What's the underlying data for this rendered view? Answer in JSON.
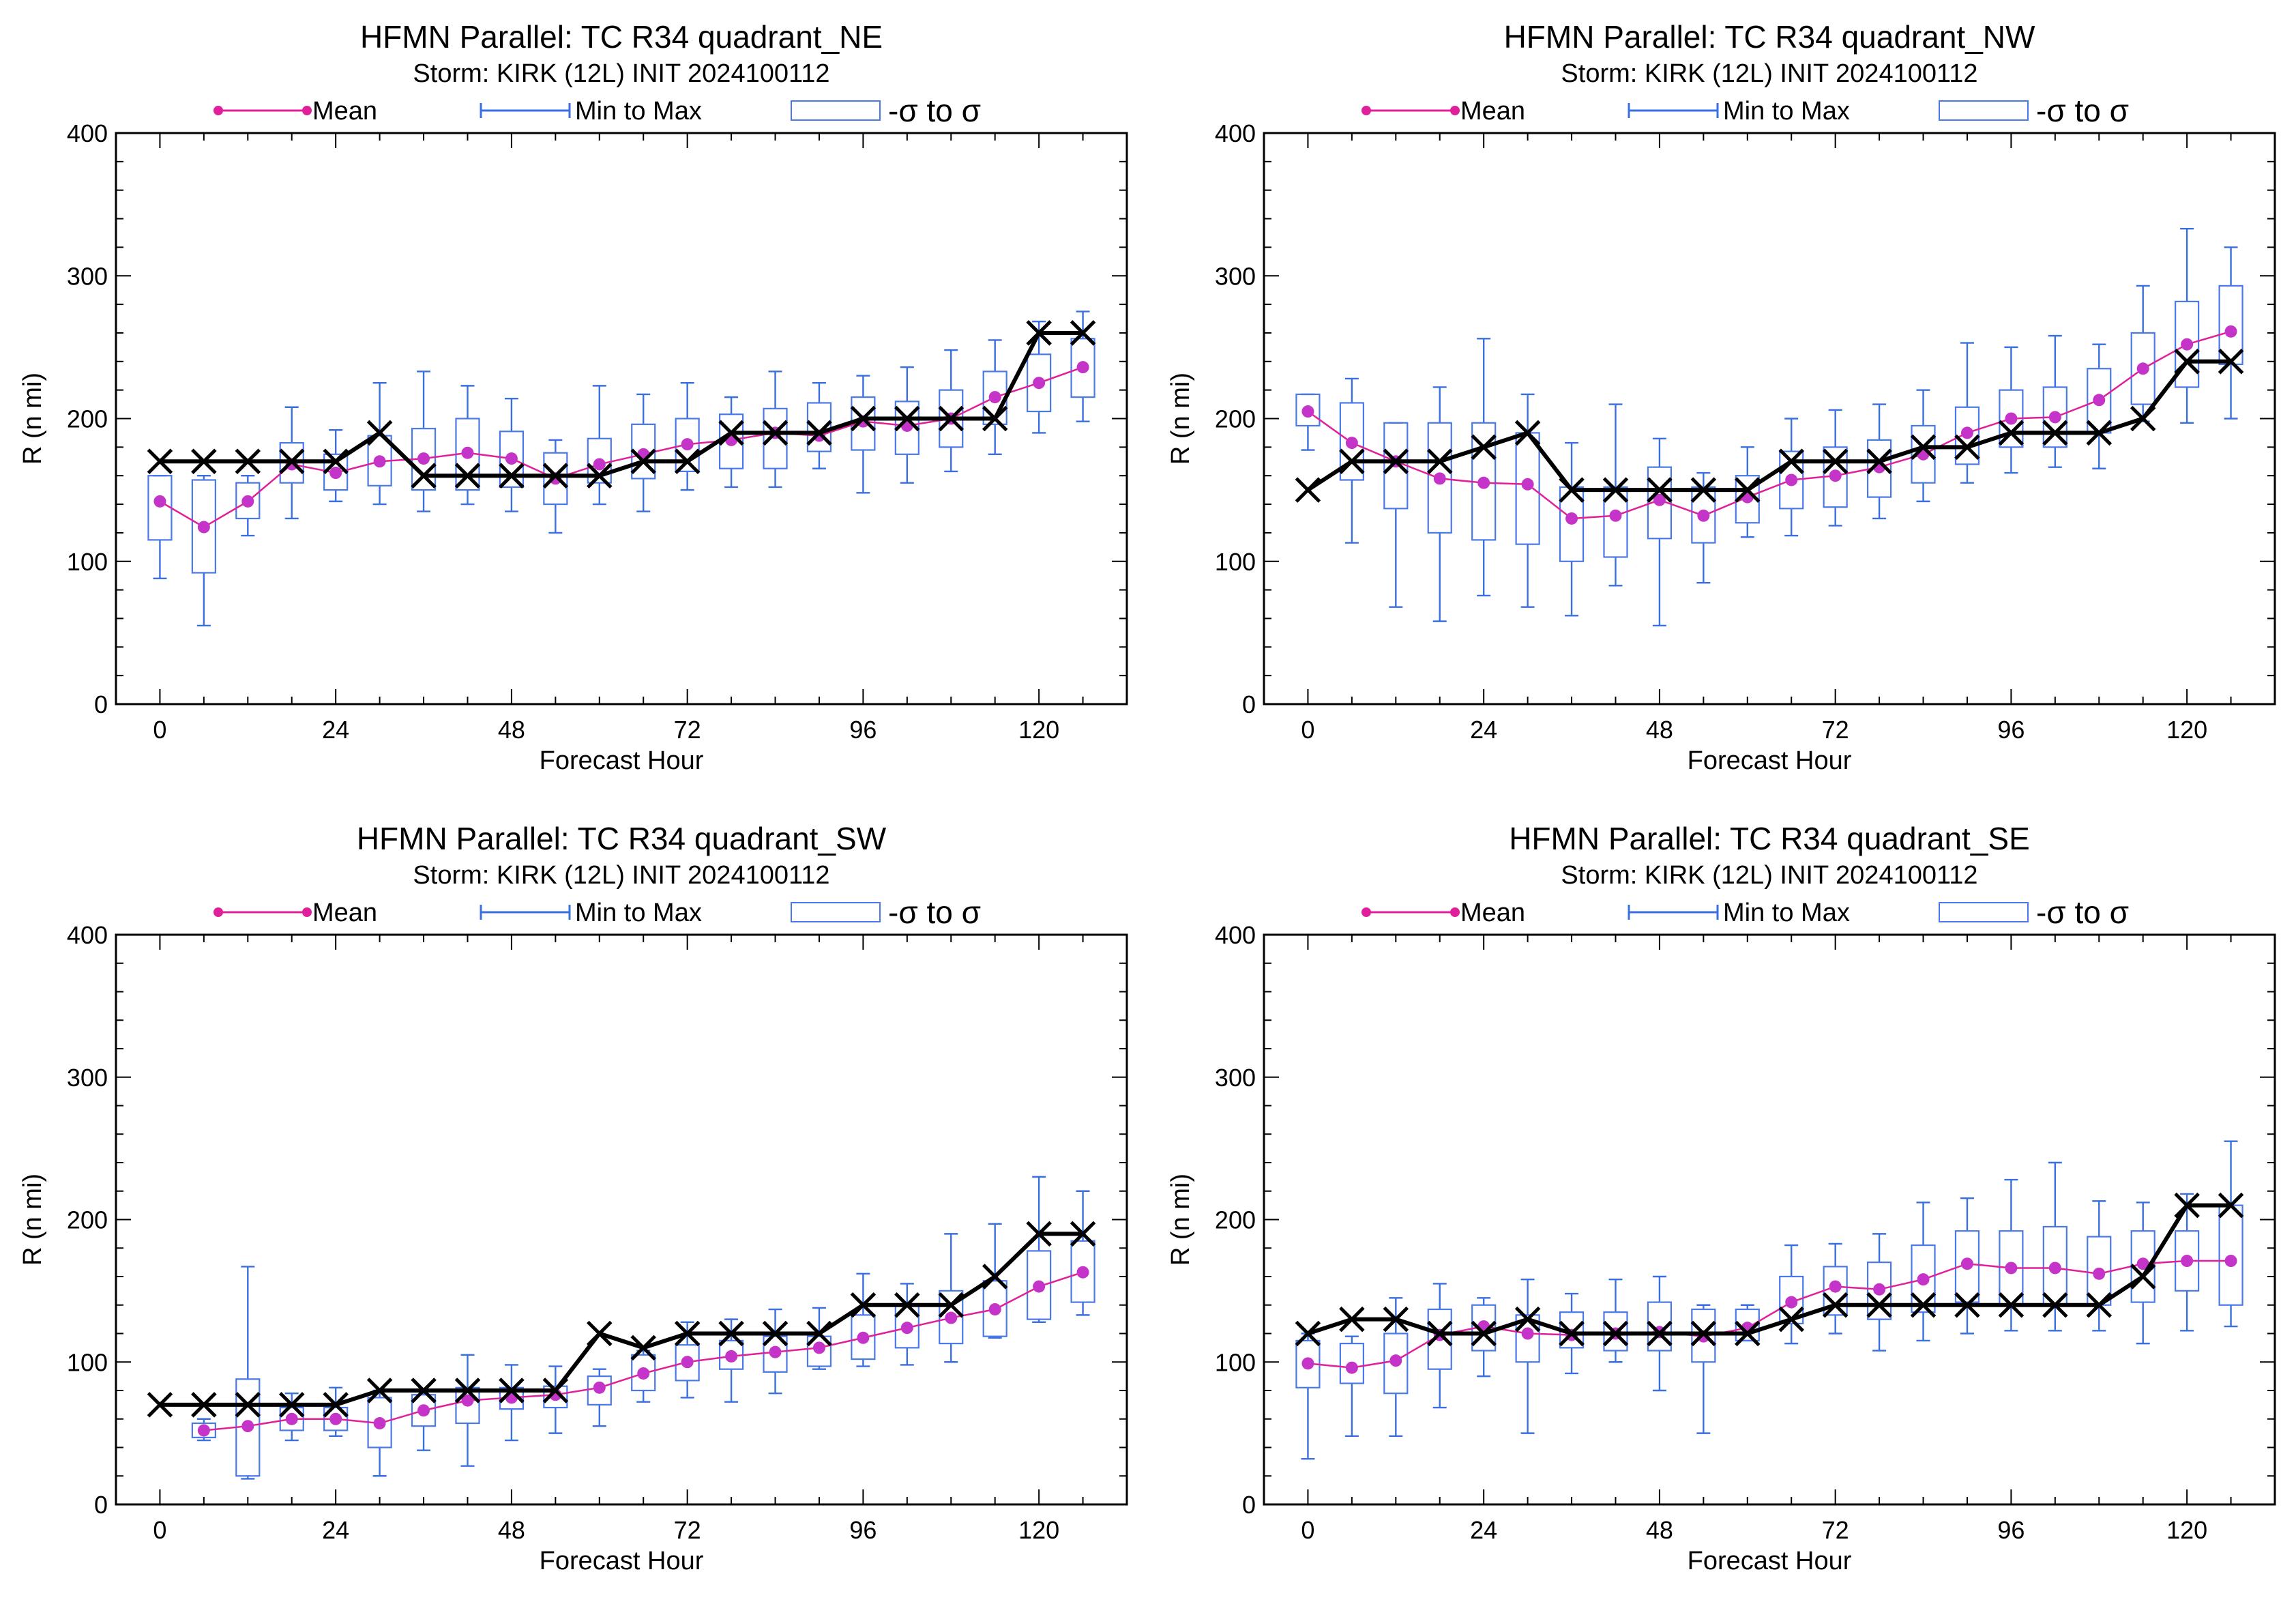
{
  "colors": {
    "mean": "#e0209a",
    "mean_marker": "#c434c8",
    "range": "#3a6fe0",
    "box": "#4a78e8",
    "obs": "#000000",
    "axes": "#000000"
  },
  "legend": {
    "mean_label": "Mean",
    "range_label": "Min to Max",
    "sigma_label": "-σ to σ"
  },
  "chart_data": [
    {
      "type": "box",
      "title": "HFMN Parallel: TC  R34 quadrant_NE",
      "subtitle": "Storm: KIRK (12L) INIT 2024100112",
      "xlabel": "Forecast Hour",
      "ylabel": "R (n mi)",
      "xlim": [
        -6,
        132
      ],
      "ylim": [
        0,
        400
      ],
      "xticks": [
        0,
        24,
        48,
        72,
        96,
        120
      ],
      "yticks": [
        0,
        100,
        200,
        300,
        400
      ],
      "x": [
        0,
        6,
        12,
        18,
        24,
        30,
        36,
        42,
        48,
        54,
        60,
        66,
        72,
        78,
        84,
        90,
        96,
        102,
        108,
        114,
        120,
        126
      ],
      "mean": [
        142,
        124,
        142,
        168,
        162,
        170,
        172,
        176,
        172,
        158,
        168,
        175,
        182,
        185,
        190,
        188,
        198,
        195,
        200,
        215,
        225,
        236
      ],
      "min": [
        88,
        55,
        118,
        130,
        142,
        140,
        135,
        140,
        135,
        120,
        140,
        135,
        150,
        152,
        152,
        165,
        148,
        155,
        163,
        175,
        190,
        198
      ],
      "max": [
        160,
        160,
        160,
        208,
        192,
        225,
        233,
        223,
        214,
        185,
        223,
        217,
        225,
        215,
        233,
        225,
        230,
        236,
        248,
        255,
        268,
        275
      ],
      "box_low": [
        115,
        92,
        130,
        155,
        150,
        153,
        150,
        150,
        152,
        140,
        155,
        158,
        163,
        165,
        165,
        177,
        178,
        175,
        180,
        196,
        205,
        215
      ],
      "box_high": [
        160,
        157,
        155,
        183,
        175,
        188,
        193,
        200,
        191,
        176,
        186,
        196,
        200,
        203,
        207,
        211,
        215,
        212,
        220,
        233,
        245,
        256
      ],
      "obs": [
        170,
        170,
        170,
        170,
        170,
        190,
        160,
        160,
        160,
        160,
        160,
        170,
        170,
        190,
        190,
        190,
        200,
        200,
        200,
        200,
        260,
        260
      ]
    },
    {
      "type": "box",
      "title": "HFMN Parallel: TC  R34 quadrant_NW",
      "subtitle": "Storm: KIRK (12L) INIT 2024100112",
      "xlabel": "Forecast Hour",
      "ylabel": "R (n mi)",
      "xlim": [
        -6,
        132
      ],
      "ylim": [
        0,
        400
      ],
      "xticks": [
        0,
        24,
        48,
        72,
        96,
        120
      ],
      "yticks": [
        0,
        100,
        200,
        300,
        400
      ],
      "x": [
        0,
        6,
        12,
        18,
        24,
        30,
        36,
        42,
        48,
        54,
        60,
        66,
        72,
        78,
        84,
        90,
        96,
        102,
        108,
        114,
        120,
        126
      ],
      "mean": [
        205,
        183,
        170,
        158,
        155,
        154,
        130,
        132,
        143,
        132,
        145,
        157,
        160,
        166,
        175,
        190,
        200,
        201,
        213,
        235,
        252,
        261
      ],
      "min": [
        178,
        113,
        68,
        58,
        76,
        68,
        62,
        83,
        55,
        85,
        117,
        118,
        125,
        130,
        142,
        155,
        162,
        166,
        165,
        198,
        197,
        200
      ],
      "max": [
        217,
        228,
        197,
        222,
        256,
        217,
        183,
        210,
        186,
        162,
        180,
        200,
        206,
        210,
        220,
        253,
        250,
        258,
        252,
        293,
        333,
        320
      ],
      "box_low": [
        195,
        157,
        137,
        120,
        115,
        112,
        100,
        103,
        116,
        113,
        127,
        137,
        138,
        145,
        155,
        168,
        180,
        180,
        190,
        210,
        222,
        238
      ],
      "box_high": [
        217,
        211,
        197,
        197,
        197,
        190,
        152,
        152,
        166,
        152,
        160,
        177,
        180,
        185,
        195,
        208,
        220,
        222,
        235,
        260,
        282,
        293
      ],
      "obs": [
        150,
        170,
        170,
        170,
        180,
        190,
        150,
        150,
        150,
        150,
        150,
        170,
        170,
        170,
        180,
        180,
        190,
        190,
        190,
        200,
        240,
        240
      ]
    },
    {
      "type": "box",
      "title": "HFMN Parallel: TC  R34 quadrant_SW",
      "subtitle": "Storm: KIRK (12L) INIT 2024100112",
      "xlabel": "Forecast Hour",
      "ylabel": "R (n mi)",
      "xlim": [
        -6,
        132
      ],
      "ylim": [
        0,
        400
      ],
      "xticks": [
        0,
        24,
        48,
        72,
        96,
        120
      ],
      "yticks": [
        0,
        100,
        200,
        300,
        400
      ],
      "x": [
        6,
        12,
        18,
        24,
        30,
        36,
        42,
        48,
        54,
        60,
        66,
        72,
        78,
        84,
        90,
        96,
        102,
        108,
        114,
        120,
        126
      ],
      "mean": [
        52,
        55,
        60,
        60,
        57,
        66,
        73,
        75,
        77,
        82,
        92,
        100,
        104,
        107,
        110,
        117,
        124,
        131,
        137,
        153,
        163
      ],
      "min": [
        45,
        18,
        45,
        48,
        20,
        38,
        27,
        45,
        50,
        55,
        72,
        75,
        72,
        78,
        95,
        97,
        98,
        100,
        117,
        128,
        133
      ],
      "max": [
        60,
        167,
        78,
        82,
        80,
        80,
        105,
        98,
        97,
        95,
        108,
        128,
        130,
        137,
        138,
        162,
        155,
        190,
        197,
        230,
        220
      ],
      "box_low": [
        47,
        20,
        52,
        52,
        40,
        55,
        57,
        67,
        68,
        70,
        80,
        87,
        95,
        93,
        97,
        102,
        110,
        113,
        118,
        130,
        142
      ],
      "box_high": [
        57,
        88,
        68,
        68,
        75,
        77,
        82,
        82,
        83,
        90,
        105,
        112,
        115,
        118,
        118,
        133,
        140,
        150,
        157,
        178,
        185
      ],
      "obs_x": [
        0,
        6,
        12,
        18,
        24,
        30,
        36,
        42,
        48,
        54,
        60,
        66,
        72,
        78,
        84,
        90,
        96,
        102,
        108,
        114,
        120,
        126
      ],
      "obs": [
        70,
        70,
        70,
        70,
        70,
        80,
        80,
        80,
        80,
        80,
        120,
        110,
        120,
        120,
        120,
        120,
        140,
        140,
        140,
        160,
        190,
        190
      ]
    },
    {
      "type": "box",
      "title": "HFMN Parallel: TC  R34 quadrant_SE",
      "subtitle": "Storm: KIRK (12L) INIT 2024100112",
      "xlabel": "Forecast Hour",
      "ylabel": "R (n mi)",
      "xlim": [
        -6,
        132
      ],
      "ylim": [
        0,
        400
      ],
      "xticks": [
        0,
        24,
        48,
        72,
        96,
        120
      ],
      "yticks": [
        0,
        100,
        200,
        300,
        400
      ],
      "x": [
        0,
        6,
        12,
        18,
        24,
        30,
        36,
        42,
        48,
        54,
        60,
        66,
        72,
        78,
        84,
        90,
        96,
        102,
        108,
        114,
        120,
        126
      ],
      "mean": [
        99,
        96,
        101,
        119,
        125,
        120,
        119,
        120,
        121,
        118,
        124,
        142,
        153,
        151,
        158,
        169,
        166,
        166,
        162,
        169,
        171,
        171
      ],
      "min": [
        32,
        48,
        48,
        68,
        90,
        50,
        92,
        100,
        80,
        50,
        115,
        113,
        120,
        108,
        115,
        120,
        122,
        122,
        122,
        113,
        122,
        125
      ],
      "max": [
        120,
        118,
        145,
        155,
        145,
        158,
        148,
        158,
        160,
        140,
        140,
        182,
        183,
        190,
        212,
        215,
        228,
        240,
        213,
        212,
        218,
        255
      ],
      "box_low": [
        82,
        85,
        78,
        95,
        108,
        100,
        110,
        108,
        108,
        100,
        115,
        127,
        133,
        130,
        135,
        142,
        140,
        140,
        140,
        142,
        150,
        140
      ],
      "box_high": [
        115,
        113,
        120,
        137,
        140,
        133,
        135,
        135,
        142,
        137,
        137,
        160,
        167,
        170,
        182,
        192,
        192,
        195,
        188,
        192,
        192,
        210
      ],
      "obs": [
        120,
        130,
        130,
        120,
        120,
        130,
        120,
        120,
        120,
        120,
        120,
        130,
        140,
        140,
        140,
        140,
        140,
        140,
        140,
        160,
        210,
        210
      ]
    }
  ]
}
